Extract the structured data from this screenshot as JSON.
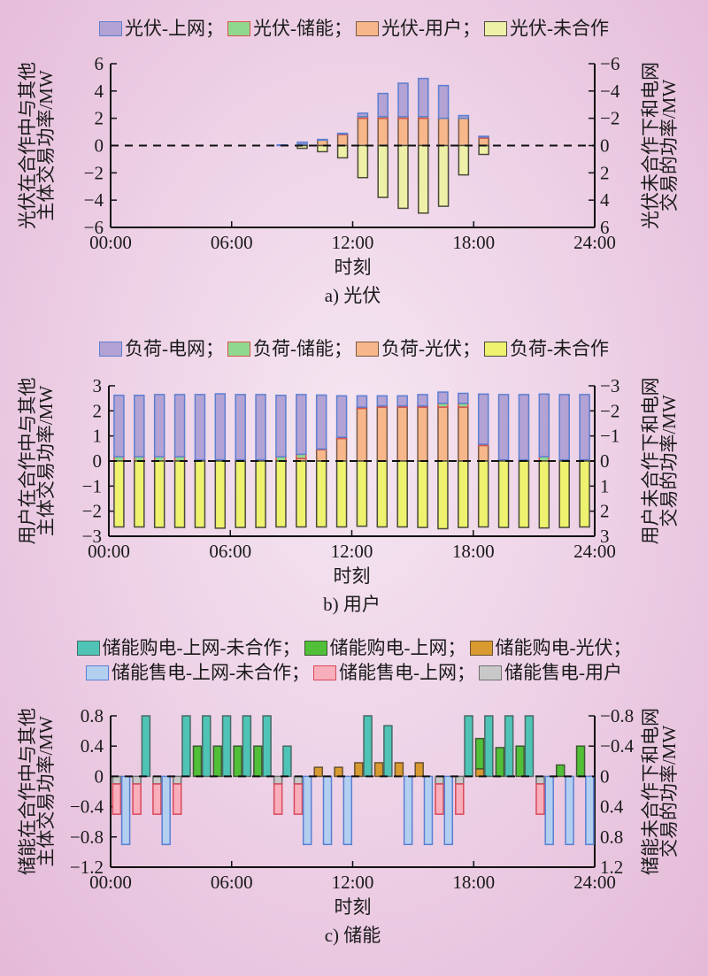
{
  "chart_data": [
    {
      "id": "a",
      "type": "bar",
      "stacked": true,
      "caption": "a) 光伏",
      "xlabel": "时刻",
      "ylabel_left": "光伏在合作中与其他主体交易功率/MW",
      "ylabel_right": "光伏未合作下和电网交易的功率/MW",
      "x_ticks": [
        "00:00",
        "06:00",
        "12:00",
        "18:00",
        "24:00"
      ],
      "y_ticks_left": [
        "6",
        "4",
        "2",
        "0",
        "−2",
        "−4",
        "−6"
      ],
      "y_ticks_right": [
        "−6",
        "−4",
        "−2",
        "0",
        "2",
        "4",
        "6"
      ],
      "ylim": [
        -6,
        6
      ],
      "hours": [
        8,
        9,
        10,
        11,
        12,
        13,
        14,
        15,
        16,
        17,
        18
      ],
      "legend": [
        {
          "name": "光伏-上网；",
          "color": "#b3a2d4",
          "border": "#5b7fd1"
        },
        {
          "name": "光伏-储能；",
          "color": "#8fd88f",
          "border": "#d9534f"
        },
        {
          "name": "光伏-用户；",
          "color": "#f7b78a",
          "border": "#7a5a48"
        },
        {
          "name": "光伏-未合作",
          "color": "#eff0a8",
          "border": "#4a4a3a"
        }
      ],
      "series": [
        {
          "name": "光伏-用户",
          "values": [
            0.0,
            0.1,
            0.4,
            0.8,
            2.0,
            2.0,
            2.0,
            2.0,
            2.0,
            2.0,
            0.55
          ]
        },
        {
          "name": "光伏-储能",
          "values": [
            0.0,
            0.0,
            0.0,
            0.05,
            0.12,
            0.12,
            0.12,
            0.12,
            0.0,
            0.0,
            0.08
          ]
        },
        {
          "name": "光伏-上网",
          "values": [
            0.05,
            0.15,
            0.05,
            0.05,
            0.25,
            1.7,
            2.45,
            2.8,
            2.4,
            0.2,
            0.05
          ]
        },
        {
          "name": "光伏-未合作",
          "values": [
            0.0,
            -0.2,
            -0.45,
            -0.9,
            -2.35,
            -3.8,
            -4.6,
            -4.95,
            -4.45,
            -2.15,
            -0.65
          ]
        }
      ]
    },
    {
      "id": "b",
      "type": "bar",
      "stacked": true,
      "caption": "b) 用户",
      "xlabel": "时刻",
      "ylabel_left": "用户在合作中与其他主体交易功率/MW",
      "ylabel_right": "用户未合作下和电网交易的功率/MW",
      "x_ticks": [
        "00:00",
        "06:00",
        "12:00",
        "18:00",
        "24:00"
      ],
      "y_ticks_left": [
        "3",
        "2",
        "1",
        "0",
        "−1",
        "−2",
        "−3"
      ],
      "y_ticks_right": [
        "−3",
        "−2",
        "−1",
        "0",
        "1",
        "2",
        "3"
      ],
      "ylim": [
        -3,
        3
      ],
      "hours": [
        0,
        1,
        2,
        3,
        4,
        5,
        6,
        7,
        8,
        9,
        10,
        11,
        12,
        13,
        14,
        15,
        16,
        17,
        18,
        19,
        20,
        21,
        22,
        23
      ],
      "legend": [
        {
          "name": "负荷-电网；",
          "color": "#b3a2d4",
          "border": "#5b7fd1"
        },
        {
          "name": "负荷-储能；",
          "color": "#8fd88f",
          "border": "#d9534f"
        },
        {
          "name": "负荷-光伏；",
          "color": "#f7b78a",
          "border": "#7a5a48"
        },
        {
          "name": "负荷-未合作",
          "color": "#eef26e",
          "border": "#4a4a3a"
        }
      ],
      "series": [
        {
          "name": "负荷-光伏",
          "values": [
            0,
            0,
            0,
            0,
            0,
            0,
            0,
            0,
            0,
            0.1,
            0.45,
            0.9,
            2.1,
            2.15,
            2.15,
            2.15,
            2.15,
            2.15,
            0.62,
            0,
            0,
            0,
            0,
            0
          ]
        },
        {
          "name": "负荷-储能",
          "values": [
            0.17,
            0.17,
            0.17,
            0.17,
            0.05,
            0.05,
            0.05,
            0.05,
            0.17,
            0.17,
            0.03,
            0.05,
            0.05,
            0.05,
            0.05,
            0.05,
            0.15,
            0.15,
            0.05,
            0.05,
            0.05,
            0.17,
            0.05,
            0.05
          ]
        },
        {
          "name": "负荷-电网",
          "values": [
            2.45,
            2.45,
            2.48,
            2.48,
            2.6,
            2.63,
            2.6,
            2.6,
            2.45,
            2.38,
            2.15,
            1.65,
            0.45,
            0.4,
            0.4,
            0.45,
            0.45,
            0.4,
            2.0,
            2.6,
            2.6,
            2.5,
            2.6,
            2.6
          ]
        },
        {
          "name": "负荷-未合作",
          "values": [
            -2.63,
            -2.63,
            -2.65,
            -2.65,
            -2.65,
            -2.68,
            -2.65,
            -2.65,
            -2.63,
            -2.63,
            -2.63,
            -2.63,
            -2.6,
            -2.63,
            -2.63,
            -2.65,
            -2.7,
            -2.65,
            -2.63,
            -2.65,
            -2.65,
            -2.67,
            -2.65,
            -2.63
          ]
        }
      ]
    },
    {
      "id": "c",
      "type": "bar",
      "stacked": true,
      "caption": "c) 储能",
      "xlabel": "时刻",
      "ylabel_left": "储能在合作中与其他主体交易功率/MW",
      "ylabel_right": "储能未合作下和电网交易的功率/MW",
      "x_ticks": [
        "00:00",
        "06:00",
        "12:00",
        "18:00",
        "24:00"
      ],
      "y_ticks_left": [
        "0.8",
        "0.4",
        "0",
        "−0.4",
        "−0.8",
        "−1.2"
      ],
      "y_ticks_right": [
        "−0.8",
        "−0.4",
        "0",
        "0.4",
        "0.8",
        "1.2"
      ],
      "ylim": [
        -1.2,
        0.8
      ],
      "hours": [
        0,
        1,
        2,
        3,
        4,
        5,
        6,
        7,
        8,
        9,
        10,
        11,
        12,
        13,
        14,
        15,
        16,
        17,
        18,
        19,
        20,
        21,
        22,
        23
      ],
      "legend": [
        {
          "name": "储能购电-上网-未合作；",
          "color": "#4fc4b6",
          "border": "#4a6a66"
        },
        {
          "name": "储能购电-上网；",
          "color": "#52bf38",
          "border": "#3d5a33"
        },
        {
          "name": "储能购电-光伏；",
          "color": "#d99a30",
          "border": "#6a5230"
        },
        {
          "name": "储能售电-上网-未合作；",
          "color": "#b3cff0",
          "border": "#5b7fd1"
        },
        {
          "name": "储能售电-上网；",
          "color": "#f8aebb",
          "border": "#d9485a"
        },
        {
          "name": "储能售电-用户",
          "color": "#c8c8c8",
          "border": "#707070"
        }
      ],
      "cooperative_series": [
        {
          "name": "储能购电-光伏",
          "values": [
            0,
            0,
            0,
            0,
            0,
            0,
            0,
            0,
            0,
            0,
            0.12,
            0.12,
            0.18,
            0.18,
            0.18,
            0.18,
            0,
            0,
            0.1,
            0,
            0,
            0,
            0,
            0
          ]
        },
        {
          "name": "储能购电-上网",
          "values": [
            0,
            0,
            0,
            0,
            0.4,
            0.4,
            0.4,
            0.4,
            0,
            0,
            0,
            0,
            0,
            0,
            0,
            0,
            0,
            0,
            0.4,
            0.38,
            0.4,
            0,
            0.15,
            0.4
          ]
        },
        {
          "name": "储能售电-用户",
          "values": [
            -0.1,
            -0.1,
            -0.1,
            -0.1,
            0,
            0,
            0,
            0,
            -0.1,
            -0.1,
            0,
            0,
            0,
            0,
            0,
            0,
            -0.1,
            -0.1,
            0,
            0,
            0,
            -0.1,
            0,
            0
          ]
        },
        {
          "name": "储能售电-上网",
          "values": [
            -0.4,
            -0.4,
            -0.4,
            -0.4,
            0,
            0,
            0,
            0,
            -0.4,
            -0.4,
            0,
            0,
            0,
            0,
            0,
            0,
            -0.4,
            -0.4,
            0,
            0,
            0,
            -0.4,
            0,
            0
          ]
        }
      ],
      "noncooperative_series": [
        {
          "name": "储能购电-上网-未合作",
          "values": [
            0,
            0.8,
            0,
            0.8,
            0.8,
            0.8,
            0.8,
            0.8,
            0.4,
            0,
            0,
            0,
            0.8,
            0.67,
            0,
            0,
            0,
            0.8,
            0.8,
            0.8,
            0.8,
            0,
            0,
            0
          ]
        },
        {
          "name": "储能售电-上网-未合作",
          "values": [
            -0.9,
            0,
            -0.9,
            0,
            0,
            0,
            0,
            0,
            0,
            -0.9,
            -0.9,
            -0.9,
            0,
            0,
            -0.9,
            -0.9,
            -0.9,
            0,
            0,
            0,
            0,
            -0.9,
            -0.9,
            -0.9
          ]
        }
      ]
    }
  ]
}
